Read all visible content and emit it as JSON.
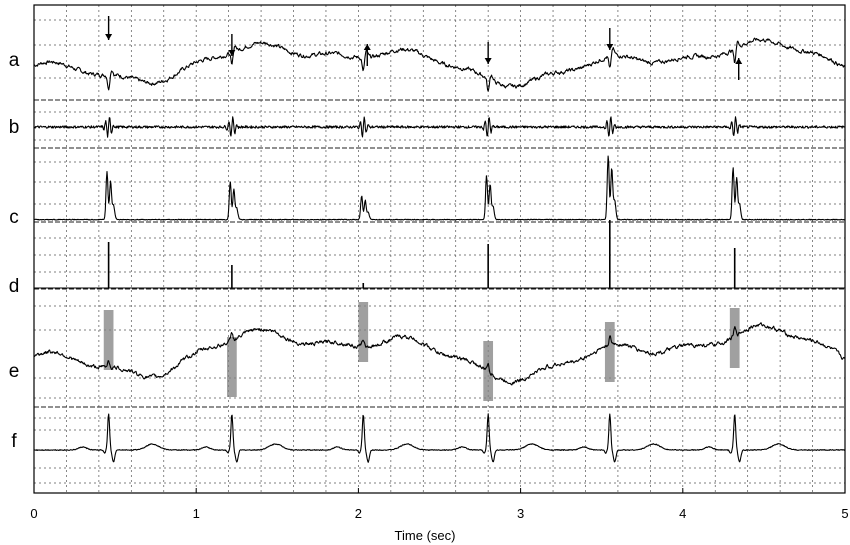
{
  "chart_data": {
    "type": "line",
    "title": "",
    "xlabel": "Time (sec)",
    "ylabel": "",
    "xlim": [
      0,
      5
    ],
    "x_ticks": [
      0,
      1,
      2,
      3,
      4,
      5
    ],
    "x_tick_labels": [
      "0",
      "1",
      "2",
      "3",
      "4",
      "5"
    ],
    "grid": true,
    "panel_labels": [
      "a",
      "b",
      "c",
      "d",
      "e",
      "f"
    ],
    "beat_times": [
      0.46,
      1.22,
      2.03,
      2.8,
      3.55,
      4.32
    ],
    "arrows_down_times": [
      0.46,
      1.22,
      2.8,
      3.55
    ],
    "arrows_up_times": [
      2.03,
      4.32
    ],
    "detection_window_width_sec": 0.06,
    "colors": {
      "trace": "#000000",
      "grid": "#555555",
      "window": "#808080"
    }
  }
}
